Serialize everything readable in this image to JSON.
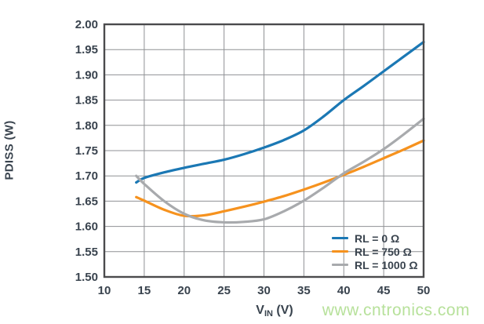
{
  "page": {
    "watermark": "www.cntronics.com"
  },
  "chart_data": {
    "type": "line",
    "title": "",
    "xlabel": "VIN (V)",
    "xlabel_parts": {
      "main": "V",
      "sub": "IN",
      "unit": " (V)"
    },
    "ylabel": "PDISS (W)",
    "xlim": [
      10,
      50
    ],
    "ylim": [
      1.5,
      2.0
    ],
    "x_ticks": [
      10,
      15,
      20,
      25,
      30,
      35,
      40,
      45,
      50
    ],
    "x_tick_labels": [
      "10",
      "15",
      "20",
      "25",
      "30",
      "35",
      "40",
      "45",
      "50"
    ],
    "y_ticks": [
      1.5,
      1.55,
      1.6,
      1.65,
      1.7,
      1.75,
      1.8,
      1.85,
      1.9,
      1.95,
      2.0
    ],
    "y_tick_labels": [
      "1.50",
      "1.55",
      "1.60",
      "1.65",
      "1.70",
      "1.75",
      "1.80",
      "1.85",
      "1.90",
      "1.95",
      "2.00"
    ],
    "grid": true,
    "legend_position": "inside-bottom-right",
    "x": [
      14,
      15,
      17.5,
      20,
      22.5,
      25,
      27.5,
      30,
      32.5,
      35,
      37.5,
      40,
      42.5,
      45,
      47.5,
      50
    ],
    "series": [
      {
        "name": "RL = 0 Ω",
        "color": "#1b78b4",
        "values": [
          1.687,
          1.696,
          1.707,
          1.716,
          1.724,
          1.732,
          1.743,
          1.756,
          1.771,
          1.79,
          1.818,
          1.85,
          1.878,
          1.907,
          1.936,
          1.965
        ]
      },
      {
        "name": "RL = 750 Ω",
        "color": "#f6921e",
        "values": [
          1.658,
          1.651,
          1.633,
          1.621,
          1.622,
          1.63,
          1.639,
          1.649,
          1.66,
          1.673,
          1.687,
          1.702,
          1.718,
          1.735,
          1.752,
          1.77
        ]
      },
      {
        "name": "RL = 1000 Ω",
        "color": "#a8aaad",
        "values": [
          1.7,
          1.684,
          1.65,
          1.625,
          1.612,
          1.608,
          1.609,
          1.614,
          1.63,
          1.651,
          1.677,
          1.705,
          1.728,
          1.753,
          1.782,
          1.813
        ]
      }
    ],
    "style": {
      "grid_color": "#8f9194",
      "frame_color": "#4b4b4d",
      "text_color": "#39434e",
      "watermark_color": "#b7e19b"
    }
  }
}
